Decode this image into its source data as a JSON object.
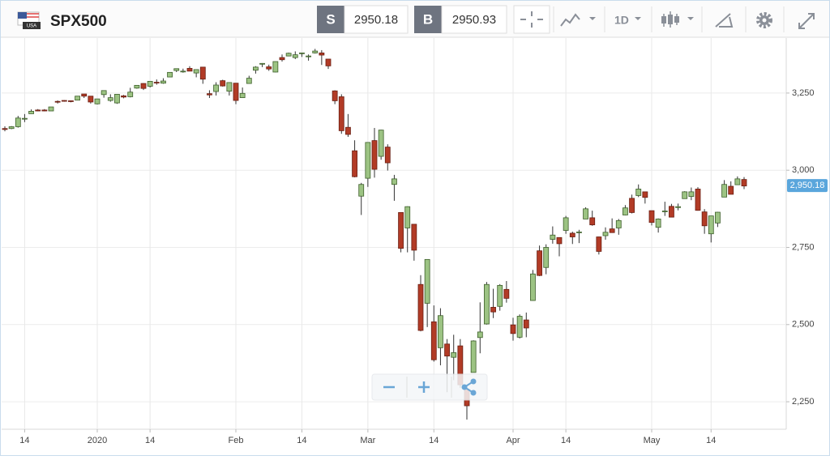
{
  "header": {
    "flag_text": "USA",
    "symbol": "SPX500",
    "sell_label": "S",
    "sell_price": "2950.18",
    "buy_label": "B",
    "buy_price": "2950.93",
    "interval": "1D"
  },
  "chart_data": {
    "type": "candlestick",
    "categories": [
      null,
      null,
      null,
      "14",
      null,
      null,
      null,
      null,
      null,
      null,
      null,
      null,
      null,
      null,
      "2020",
      null,
      null,
      null,
      null,
      null,
      null,
      null,
      "14",
      null,
      null,
      null,
      null,
      null,
      null,
      null,
      null,
      null,
      null,
      null,
      null,
      "Feb",
      null,
      null,
      null,
      null,
      null,
      null,
      null,
      null,
      null,
      "14",
      null,
      null,
      null,
      null,
      null,
      null,
      null,
      null,
      null,
      "Mar",
      null,
      null,
      null,
      null,
      null,
      null,
      null,
      null,
      null,
      "14",
      null,
      null,
      null,
      null,
      null,
      null,
      null,
      null,
      null,
      null,
      null,
      "Apr",
      null,
      null,
      null,
      null,
      null,
      null,
      null,
      "14",
      null,
      null,
      null,
      null,
      null,
      null,
      null,
      null,
      null,
      null,
      null,
      null,
      "May",
      null,
      null,
      null,
      null,
      null,
      null,
      null,
      null,
      "14",
      null,
      null,
      null,
      null,
      null
    ],
    "open": [
      3135,
      3135,
      3141,
      3166,
      3183,
      3195,
      3195,
      3192,
      3223,
      3226,
      3225,
      3227,
      3247,
      3240,
      3215,
      3245,
      3226,
      3218,
      3241,
      3238,
      3266,
      3281,
      3272,
      3285,
      3282,
      3302,
      3323,
      3321,
      3330,
      3315,
      3334,
      3248,
      3255,
      3290,
      3256,
      3282,
      3235,
      3281,
      3324,
      3344,
      3335,
      3318,
      3365,
      3370,
      3365,
      3378,
      3370,
      3380,
      3380,
      3360,
      3257,
      3238,
      3139,
      3063,
      2916,
      2974,
      3096,
      3045,
      3075,
      2954,
      2863,
      2813,
      2825,
      2630,
      2569,
      2509,
      2425,
      2437,
      2394,
      2431,
      2291,
      2345,
      2458,
      2502,
      2556,
      2559,
      2614,
      2499,
      2459,
      2515,
      2578,
      2739,
      2685,
      2776,
      2782,
      2805,
      2796,
      2799,
      2842,
      2846,
      2784,
      2788,
      2810,
      2813,
      2855,
      2909,
      2918,
      2930,
      2869,
      2815,
      2868,
      2883,
      2879,
      2908,
      2915,
      2939,
      2865,
      2794,
      2829,
      2913,
      2948,
      2953,
      2970
    ],
    "high": [
      3142,
      3143,
      3176,
      3182,
      3197,
      3198,
      3198,
      3205,
      3226,
      3227,
      3226,
      3240,
      3247,
      3240,
      3231,
      3258,
      3246,
      3247,
      3244,
      3267,
      3275,
      3282,
      3288,
      3294,
      3298,
      3317,
      3329,
      3329,
      3337,
      3326,
      3334,
      3259,
      3285,
      3293,
      3285,
      3282,
      3268,
      3306,
      3337,
      3347,
      3342,
      3352,
      3375,
      3381,
      3385,
      3380,
      3375,
      3393,
      3389,
      3360,
      3259,
      3246,
      3182,
      3097,
      2959,
      3091,
      3137,
      3131,
      3084,
      2985,
      2863,
      2883,
      2825,
      2660,
      2711,
      2562,
      2553,
      2453,
      2467,
      2453,
      2300,
      2449,
      2572,
      2638,
      2616,
      2631,
      2641,
      2522,
      2533,
      2539,
      2677,
      2756,
      2760,
      2818,
      2782,
      2852,
      2801,
      2807,
      2880,
      2869,
      2785,
      2815,
      2844,
      2842,
      2887,
      2921,
      2954,
      2930,
      2869,
      2844,
      2898,
      2891,
      2892,
      2932,
      2944,
      2945,
      2874,
      2852,
      2865,
      2968,
      2964,
      2980,
      2978
    ],
    "low": [
      3126,
      3133,
      3138,
      3156,
      3183,
      3191,
      3191,
      3192,
      3216,
      3222,
      3220,
      3227,
      3234,
      3216,
      3213,
      3235,
      3222,
      3215,
      3233,
      3236,
      3264,
      3260,
      3268,
      3277,
      3280,
      3302,
      3318,
      3316,
      3321,
      3301,
      3280,
      3234,
      3242,
      3271,
      3242,
      3214,
      3235,
      3280,
      3313,
      3334,
      3322,
      3317,
      3352,
      3369,
      3360,
      3367,
      3355,
      3378,
      3341,
      3328,
      3214,
      3118,
      3108,
      2977,
      2855,
      2946,
      2976,
      3034,
      2999,
      2901,
      2734,
      2734,
      2707,
      2478,
      2492,
      2380,
      2368,
      2281,
      2320,
      2295,
      2192,
      2345,
      2407,
      2500,
      2521,
      2545,
      2571,
      2448,
      2455,
      2459,
      2577,
      2657,
      2663,
      2762,
      2721,
      2794,
      2761,
      2764,
      2842,
      2820,
      2727,
      2775,
      2797,
      2791,
      2854,
      2860,
      2913,
      2892,
      2821,
      2798,
      2852,
      2847,
      2870,
      2908,
      2903,
      2869,
      2794,
      2766,
      2816,
      2913,
      2922,
      2953,
      2939
    ],
    "close": [
      3132,
      3141,
      3169,
      3168,
      3191,
      3192,
      3192,
      3205,
      3221,
      3224,
      3223,
      3240,
      3240,
      3221,
      3231,
      3258,
      3235,
      3246,
      3237,
      3253,
      3275,
      3265,
      3288,
      3283,
      3289,
      3317,
      3329,
      3321,
      3321,
      3326,
      3295,
      3244,
      3276,
      3273,
      3284,
      3226,
      3249,
      3298,
      3334,
      3346,
      3328,
      3352,
      3358,
      3379,
      3374,
      3380,
      3370,
      3386,
      3373,
      3338,
      3225,
      3128,
      3116,
      2979,
      2954,
      3090,
      3003,
      3130,
      3024,
      2972,
      2747,
      2882,
      2741,
      2481,
      2711,
      2386,
      2529,
      2398,
      2409,
      2305,
      2237,
      2447,
      2476,
      2630,
      2541,
      2627,
      2585,
      2471,
      2527,
      2489,
      2664,
      2659,
      2750,
      2790,
      2762,
      2846,
      2784,
      2800,
      2875,
      2823,
      2737,
      2799,
      2798,
      2837,
      2878,
      2863,
      2939,
      2912,
      2831,
      2842,
      2868,
      2848,
      2882,
      2930,
      2930,
      2870,
      2820,
      2852,
      2864,
      2954,
      2922,
      2972,
      2949
    ],
    "up_color": "#9cc383",
    "down_color": "#b23b26",
    "ylim": [
      2161,
      3415
    ],
    "yticks": [
      {
        "value": 2250,
        "label": "2,250"
      },
      {
        "value": 2500,
        "label": "2,500"
      },
      {
        "value": 2750,
        "label": "2,750"
      },
      {
        "value": 3000,
        "label": "3,000"
      },
      {
        "value": 3250,
        "label": "3,250"
      }
    ],
    "last_price": {
      "value": 2950.18,
      "label": "2,950.18"
    },
    "grid": true
  }
}
